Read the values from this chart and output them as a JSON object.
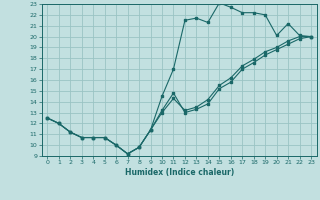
{
  "title": "",
  "xlabel": "Humidex (Indice chaleur)",
  "bg_color": "#c2e0e0",
  "grid_color": "#9ac4c4",
  "line_color": "#1a6868",
  "xlim": [
    -0.5,
    23.5
  ],
  "ylim": [
    9,
    23
  ],
  "xticks": [
    0,
    1,
    2,
    3,
    4,
    5,
    6,
    7,
    8,
    9,
    10,
    11,
    12,
    13,
    14,
    15,
    16,
    17,
    18,
    19,
    20,
    21,
    22,
    23
  ],
  "yticks": [
    9,
    10,
    11,
    12,
    13,
    14,
    15,
    16,
    17,
    18,
    19,
    20,
    21,
    22,
    23
  ],
  "line1_x": [
    0,
    1,
    2,
    3,
    4,
    5,
    6,
    7,
    8,
    9,
    10,
    11,
    12,
    13,
    14,
    15,
    16,
    17,
    18,
    19,
    20,
    21,
    22,
    23
  ],
  "line1_y": [
    12.5,
    12.0,
    11.2,
    10.7,
    10.7,
    10.7,
    10.0,
    9.2,
    9.8,
    11.4,
    14.5,
    17.0,
    21.5,
    21.7,
    21.3,
    23.1,
    22.7,
    22.2,
    22.2,
    22.0,
    20.1,
    21.2,
    20.1,
    20.0
  ],
  "line2_x": [
    0,
    1,
    2,
    3,
    4,
    5,
    6,
    7,
    8,
    9,
    10,
    11,
    12,
    13,
    14,
    15,
    16,
    17,
    18,
    19,
    20,
    21,
    22,
    23
  ],
  "line2_y": [
    12.5,
    12.0,
    11.2,
    10.7,
    10.7,
    10.7,
    10.0,
    9.2,
    9.8,
    11.4,
    13.2,
    14.8,
    13.0,
    13.3,
    13.8,
    15.2,
    15.8,
    17.0,
    17.6,
    18.3,
    18.8,
    19.3,
    19.8,
    20.0
  ],
  "line3_x": [
    0,
    1,
    2,
    3,
    4,
    5,
    6,
    7,
    8,
    9,
    10,
    11,
    12,
    13,
    14,
    15,
    16,
    17,
    18,
    19,
    20,
    21,
    22,
    23
  ],
  "line3_y": [
    12.5,
    12.0,
    11.2,
    10.7,
    10.7,
    10.7,
    10.0,
    9.2,
    9.8,
    11.4,
    13.0,
    14.3,
    13.2,
    13.5,
    14.2,
    15.5,
    16.2,
    17.3,
    17.9,
    18.6,
    19.0,
    19.6,
    20.0,
    20.0
  ]
}
